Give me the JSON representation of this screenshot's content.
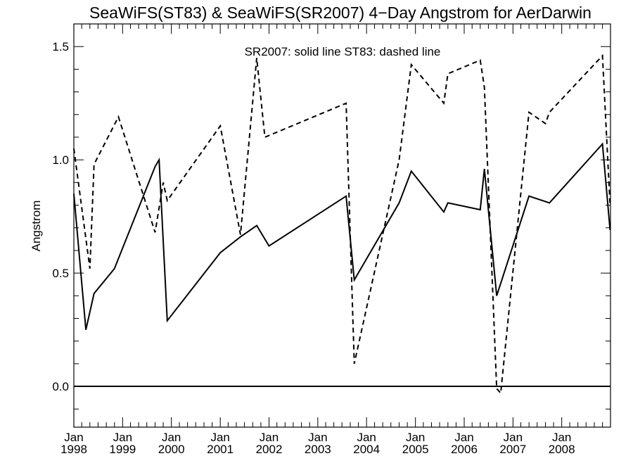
{
  "chart_data": {
    "type": "line",
    "title": "SeaWiFS(ST83) & SeaWiFS(SR2007) 4−Day Angstrom for AerDarwin",
    "xlabel": "",
    "ylabel": "Angstrom",
    "xlim": [
      "1998-01-01",
      "2008-12-31"
    ],
    "ylim": [
      -0.18,
      1.6
    ],
    "grid": false,
    "annotation": "SR2007: solid line   ST83: dashed line",
    "x_ticks": [
      {
        "date": "1998-01-01",
        "line1": "Jan",
        "line2": "1998"
      },
      {
        "date": "1999-01-01",
        "line1": "Jan",
        "line2": "1999"
      },
      {
        "date": "2000-01-01",
        "line1": "Jan",
        "line2": "2000"
      },
      {
        "date": "2001-01-01",
        "line1": "Jan",
        "line2": "2001"
      },
      {
        "date": "2002-01-01",
        "line1": "Jan",
        "line2": "2002"
      },
      {
        "date": "2003-01-01",
        "line1": "Jan",
        "line2": "2003"
      },
      {
        "date": "2004-01-01",
        "line1": "Jan",
        "line2": "2004"
      },
      {
        "date": "2005-01-01",
        "line1": "Jan",
        "line2": "2005"
      },
      {
        "date": "2006-01-01",
        "line1": "Jan",
        "line2": "2006"
      },
      {
        "date": "2007-01-01",
        "line1": "Jan",
        "line2": "2007"
      },
      {
        "date": "2008-01-01",
        "line1": "Jan",
        "line2": "2008"
      }
    ],
    "y_ticks": [
      {
        "value": 0.0,
        "label": "0.0"
      },
      {
        "value": 0.5,
        "label": "0.5"
      },
      {
        "value": 1.0,
        "label": "1.0"
      },
      {
        "value": 1.5,
        "label": "1.5"
      }
    ],
    "reference_line": 0.0,
    "series": [
      {
        "name": "SR2007",
        "style": "solid",
        "color": "#000000",
        "points": [
          {
            "x": "1998-01-01",
            "y": 0.85
          },
          {
            "x": "1998-04-01",
            "y": 0.25
          },
          {
            "x": "1998-06-01",
            "y": 0.41
          },
          {
            "x": "1998-11-01",
            "y": 0.52
          },
          {
            "x": "1999-09-01",
            "y": 0.97
          },
          {
            "x": "1999-10-01",
            "y": 1.0
          },
          {
            "x": "1999-12-01",
            "y": 0.29
          },
          {
            "x": "2001-01-01",
            "y": 0.59
          },
          {
            "x": "2001-06-01",
            "y": 0.66
          },
          {
            "x": "2001-10-01",
            "y": 0.71
          },
          {
            "x": "2002-01-01",
            "y": 0.62
          },
          {
            "x": "2003-08-01",
            "y": 0.84
          },
          {
            "x": "2003-10-01",
            "y": 0.47
          },
          {
            "x": "2004-09-01",
            "y": 0.81
          },
          {
            "x": "2004-12-01",
            "y": 0.95
          },
          {
            "x": "2005-08-01",
            "y": 0.77
          },
          {
            "x": "2005-09-01",
            "y": 0.81
          },
          {
            "x": "2006-05-01",
            "y": 0.78
          },
          {
            "x": "2006-06-01",
            "y": 0.96
          },
          {
            "x": "2006-09-01",
            "y": 0.4
          },
          {
            "x": "2007-05-01",
            "y": 0.84
          },
          {
            "x": "2007-10-01",
            "y": 0.81
          },
          {
            "x": "2008-11-01",
            "y": 1.07
          },
          {
            "x": "2008-12-28",
            "y": 0.69
          }
        ]
      },
      {
        "name": "ST83",
        "style": "dashed",
        "color": "#000000",
        "points": [
          {
            "x": "1998-01-01",
            "y": 1.05
          },
          {
            "x": "1998-05-01",
            "y": 0.52
          },
          {
            "x": "1998-06-01",
            "y": 0.98
          },
          {
            "x": "1998-12-01",
            "y": 1.19
          },
          {
            "x": "1999-09-01",
            "y": 0.68
          },
          {
            "x": "1999-11-01",
            "y": 0.9
          },
          {
            "x": "1999-12-01",
            "y": 0.82
          },
          {
            "x": "2001-01-01",
            "y": 1.15
          },
          {
            "x": "2001-06-01",
            "y": 0.67
          },
          {
            "x": "2001-10-01",
            "y": 1.45
          },
          {
            "x": "2001-12-01",
            "y": 1.1
          },
          {
            "x": "2003-08-01",
            "y": 1.25
          },
          {
            "x": "2003-10-01",
            "y": 0.1
          },
          {
            "x": "2004-09-01",
            "y": 1.0
          },
          {
            "x": "2004-12-01",
            "y": 1.42
          },
          {
            "x": "2005-08-01",
            "y": 1.25
          },
          {
            "x": "2005-09-01",
            "y": 1.38
          },
          {
            "x": "2006-05-01",
            "y": 1.44
          },
          {
            "x": "2006-06-01",
            "y": 1.32
          },
          {
            "x": "2006-09-01",
            "y": -0.01
          },
          {
            "x": "2006-10-01",
            "y": -0.03
          },
          {
            "x": "2007-05-01",
            "y": 1.21
          },
          {
            "x": "2007-09-01",
            "y": 1.16
          },
          {
            "x": "2007-10-01",
            "y": 1.21
          },
          {
            "x": "2008-11-01",
            "y": 1.46
          },
          {
            "x": "2008-12-28",
            "y": 0.8
          }
        ]
      }
    ]
  }
}
